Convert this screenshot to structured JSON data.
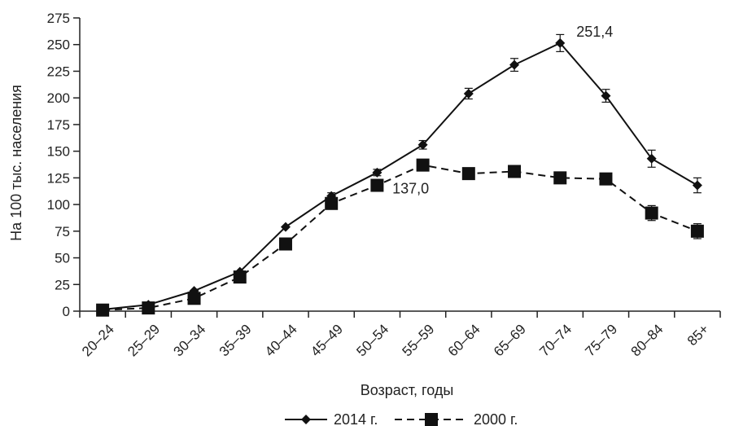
{
  "chart_data": {
    "type": "line",
    "title": "",
    "xlabel": "Возраст, годы",
    "ylabel": "На 100 тыс. населения",
    "categories": [
      "20–24",
      "25–29",
      "30–34",
      "35–39",
      "40–44",
      "45–49",
      "50–54",
      "55–59",
      "60–64",
      "65–69",
      "70–74",
      "75–79",
      "80–84",
      "85+"
    ],
    "ylim": [
      0,
      275
    ],
    "yticks": [
      0,
      25,
      50,
      75,
      100,
      125,
      150,
      175,
      200,
      225,
      250,
      275
    ],
    "grid": false,
    "legend_position": "bottom",
    "series": [
      {
        "name": "2014 г.",
        "marker": "diamond",
        "line": "solid",
        "values": [
          1.5,
          6,
          19,
          37,
          79,
          108,
          130,
          156,
          204,
          231,
          251.4,
          202,
          143,
          118
        ],
        "error": [
          0,
          0,
          0,
          0,
          0,
          3,
          3,
          4,
          5,
          6,
          8,
          6,
          8,
          7
        ]
      },
      {
        "name": "2000 г.",
        "marker": "square",
        "line": "dashed",
        "values": [
          1,
          3,
          12,
          32,
          63,
          101,
          118,
          137.0,
          129,
          131,
          125,
          124,
          92,
          75
        ],
        "error": [
          0,
          0,
          0,
          0,
          0,
          0,
          0,
          4,
          3,
          3,
          3,
          4,
          7,
          7
        ]
      }
    ],
    "annotations": [
      {
        "text": "251,4",
        "series": 0,
        "index": 10
      },
      {
        "text": "137,0",
        "series": 1,
        "index": 7
      }
    ]
  }
}
